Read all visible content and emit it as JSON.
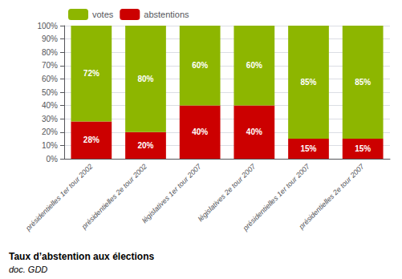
{
  "chart_data": {
    "type": "bar",
    "title": "Taux d’abstention aux élections",
    "subtitle": "doc. GDD",
    "categories": [
      "présidentielles 1er tour 2002",
      "présidentielles 2e tour 2002",
      "législatives 1er tour 2007",
      "législatives 2e tour 2007",
      "présidentielles 1er tour 2007",
      "présidentielles 2e tour 2007"
    ],
    "series": [
      {
        "name": "abstentions",
        "color": "#cc0000",
        "values": [
          28,
          20,
          40,
          40,
          15,
          15
        ],
        "value_labels": [
          "28%",
          "20%",
          "40%",
          "40%",
          "15%",
          "15%"
        ]
      },
      {
        "name": "votes",
        "color": "#8db600",
        "values": [
          72,
          80,
          60,
          60,
          85,
          85
        ],
        "value_labels": [
          "72%",
          "80%",
          "60%",
          "60%",
          "85%",
          "85%"
        ]
      }
    ],
    "stacked": true,
    "data_labels": true,
    "ylim": [
      0,
      100
    ],
    "yticks": [
      {
        "value": 0,
        "label": "0%"
      },
      {
        "value": 10,
        "label": "10%"
      },
      {
        "value": 20,
        "label": "20%"
      },
      {
        "value": 30,
        "label": "30%"
      },
      {
        "value": 40,
        "label": "40%"
      },
      {
        "value": 50,
        "label": "50%"
      },
      {
        "value": 60,
        "label": "60%"
      },
      {
        "value": 70,
        "label": "70%"
      },
      {
        "value": 80,
        "label": "80%"
      },
      {
        "value": 90,
        "label": "90%"
      },
      {
        "value": 100,
        "label": "100%"
      }
    ],
    "grid": true,
    "legend": "upper left"
  }
}
